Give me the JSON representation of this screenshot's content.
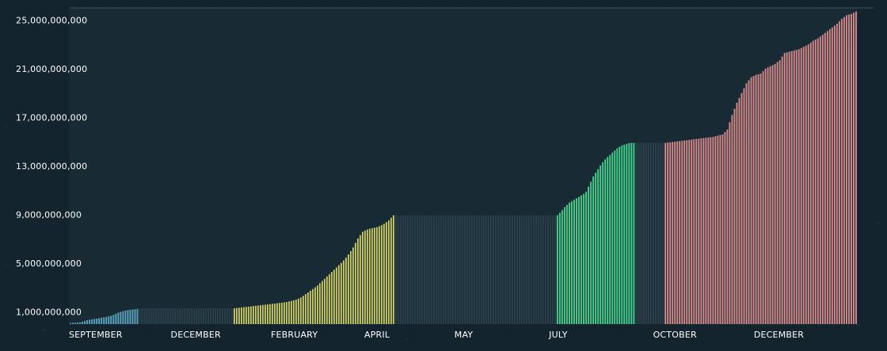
{
  "colors": {
    "background": "#14242f",
    "plot_bg": "#16272f",
    "grid_line": "#243a44",
    "gap_fill": "#2b3f4b",
    "blue": "#5aa2be",
    "yellow": "#c9c85c",
    "green": "#3fd08a",
    "red": "#d88a8a",
    "text": "#ffffff"
  },
  "chart_data": {
    "type": "bar",
    "title": "",
    "xlabel": "",
    "ylabel": "",
    "ylim": [
      0,
      26000000000
    ],
    "y_ticks": [
      1000000000,
      5000000000,
      9000000000,
      13000000000,
      17000000000,
      21000000000,
      25000000000
    ],
    "y_tick_labels": [
      "1,000,000,000",
      "5,000,000,000",
      "9,000,000,000",
      "13,000,000,000",
      "17,000,000,000",
      "21,000,000,000",
      "25,000,000,000"
    ],
    "x_tick_labels": [
      "SEPTEMBER",
      "DECEMBER",
      "FEBRUARY",
      "APRIL",
      "MAY",
      "JULY",
      "OCTOBER",
      "DECEMBER"
    ],
    "x_tick_positions": [
      0.033,
      0.16,
      0.285,
      0.39,
      0.5,
      0.62,
      0.768,
      0.9
    ],
    "segments": [
      {
        "color": "blue",
        "x_range": [
          0.0,
          0.088
        ],
        "values": [
          100000000,
          120000000,
          150000000,
          300000000,
          380000000,
          450000000,
          520000000,
          600000000,
          700000000,
          900000000,
          1050000000,
          1150000000,
          1200000000,
          1250000000
        ]
      },
      {
        "color": "gap",
        "x_range": [
          0.088,
          0.208
        ],
        "values": [
          1300000000
        ]
      },
      {
        "color": "yellow",
        "x_range": [
          0.208,
          0.413
        ],
        "values": [
          1300000000,
          1350000000,
          1400000000,
          1450000000,
          1500000000,
          1550000000,
          1600000000,
          1650000000,
          1700000000,
          1750000000,
          1800000000,
          1900000000,
          2000000000,
          2200000000,
          2500000000,
          2800000000,
          3100000000,
          3500000000,
          3900000000,
          4300000000,
          4700000000,
          5100000000,
          5600000000,
          6200000000,
          7000000000,
          7600000000,
          7800000000,
          7900000000,
          8000000000,
          8200000000,
          8500000000,
          8950000000
        ]
      },
      {
        "color": "gap",
        "x_range": [
          0.413,
          0.618
        ],
        "values": [
          8950000000
        ]
      },
      {
        "color": "green",
        "x_range": [
          0.618,
          0.718
        ],
        "values": [
          8950000000,
          9300000000,
          9700000000,
          10000000000,
          10200000000,
          10400000000,
          10600000000,
          10800000000,
          11500000000,
          12200000000,
          12700000000,
          13200000000,
          13600000000,
          13900000000,
          14200000000,
          14500000000,
          14700000000,
          14800000000,
          14900000000,
          14900000000
        ]
      },
      {
        "color": "gap",
        "x_range": [
          0.718,
          0.755
        ],
        "values": [
          14900000000
        ]
      },
      {
        "color": "red",
        "x_range": [
          0.755,
          1.0
        ],
        "values": [
          14900000000,
          14950000000,
          15000000000,
          15050000000,
          15100000000,
          15150000000,
          15200000000,
          15250000000,
          15300000000,
          15350000000,
          15400000000,
          15500000000,
          15600000000,
          16000000000,
          17200000000,
          18200000000,
          19000000000,
          19800000000,
          20300000000,
          20500000000,
          20600000000,
          21000000000,
          21200000000,
          21400000000,
          21700000000,
          22300000000,
          22400000000,
          22500000000,
          22600000000,
          22800000000,
          23000000000,
          23300000000,
          23500000000,
          23800000000,
          24100000000,
          24400000000,
          24700000000,
          25100000000,
          25400000000,
          25500000000,
          25700000000
        ]
      }
    ],
    "grid": true,
    "legend": "none"
  }
}
